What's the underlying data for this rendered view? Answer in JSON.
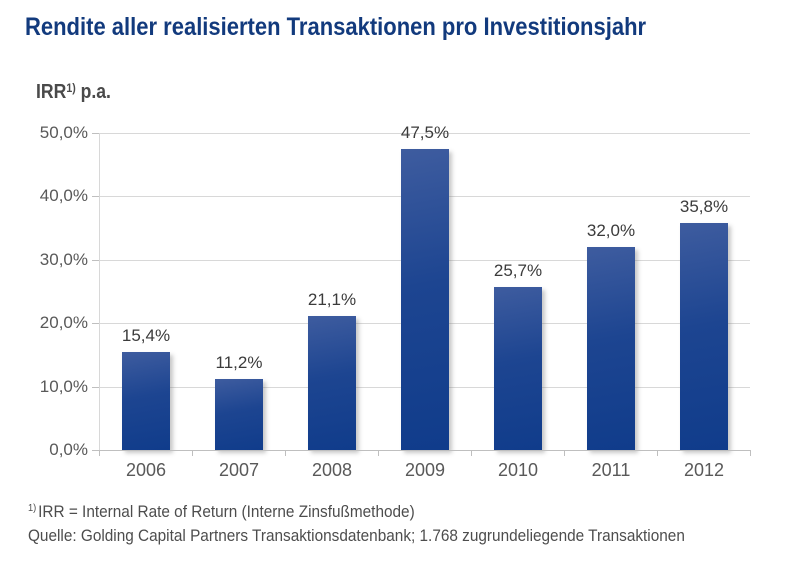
{
  "title": "Rendite aller realisierten Transaktionen pro Investitionsjahr",
  "axis_title": {
    "text": "IRR",
    "superscript": "1)",
    "suffix": "p.a."
  },
  "chart_data": {
    "type": "bar",
    "title": "Rendite aller realisierten Transaktionen pro Investitionsjahr",
    "ylabel": "IRR 1) p.a.",
    "xlabel": "",
    "categories": [
      "2006",
      "2007",
      "2008",
      "2009",
      "2010",
      "2011",
      "2012"
    ],
    "values": [
      15.4,
      11.2,
      21.1,
      47.5,
      25.7,
      32.0,
      35.8
    ],
    "value_labels": [
      "15,4%",
      "11,2%",
      "21,1%",
      "47,5%",
      "25,7%",
      "32,0%",
      "35,8%"
    ],
    "ylim": [
      0,
      50
    ],
    "yticks": [
      0,
      10,
      20,
      30,
      40,
      50
    ],
    "ytick_labels": [
      "0,0%",
      "10,0%",
      "20,0%",
      "30,0%",
      "40,0%",
      "50,0%"
    ],
    "grid": true,
    "legend": false,
    "bar_gradient_top": "#3E5C9F",
    "bar_gradient_mid": "#1D4591",
    "bar_gradient_bottom": "#103C8B"
  },
  "footnotes": [
    {
      "superscript": "1)",
      "text": "IRR = Internal Rate of Return (Interne Zinsfußmethode)"
    },
    {
      "superscript": "",
      "text": "Quelle: Golding Capital Partners Transaktionsdatenbank; 1.768 zugrundeliegende Transaktionen"
    }
  ],
  "colors": {
    "title": "#123A7D",
    "axis_label_title": "#4A4A4A",
    "axis_tick_labels": "#595959",
    "data_labels": "#3B3B3B",
    "gridline": "#D8D8D8",
    "axis_line": "#BFBFBF",
    "footnote": "#4D4D4D",
    "background": "#FFFFFF"
  }
}
